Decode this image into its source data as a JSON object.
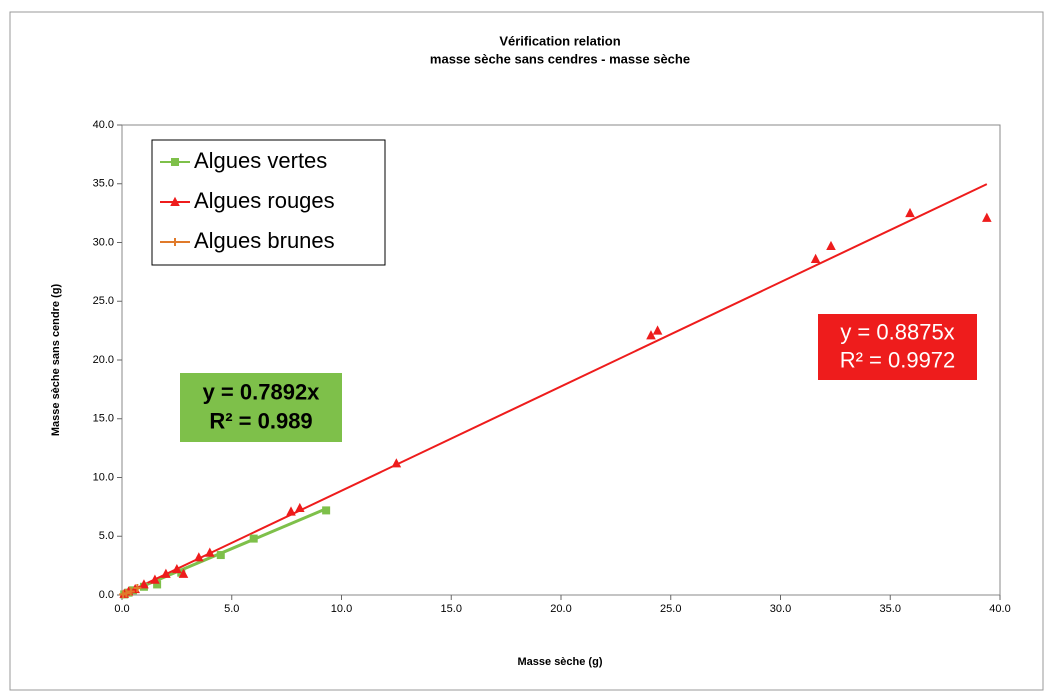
{
  "chart_data": {
    "type": "scatter",
    "title": "Vérification relation",
    "subtitle": "masse sèche sans cendres - masse sèche",
    "x_label": "Masse sèche (g)",
    "y_label": "Masse sèche sans cendre (g)",
    "xlim": [
      0,
      40
    ],
    "ylim": [
      0,
      40
    ],
    "xticks": [
      {
        "value": 0,
        "label": "0.0"
      },
      {
        "value": 5,
        "label": "5.0"
      },
      {
        "value": 10,
        "label": "10.0"
      },
      {
        "value": 15,
        "label": "15.0"
      },
      {
        "value": 20,
        "label": "20.0"
      },
      {
        "value": 25,
        "label": "25.0"
      },
      {
        "value": 30,
        "label": "30.0"
      },
      {
        "value": 35,
        "label": "35.0"
      },
      {
        "value": 40,
        "label": "40.0"
      }
    ],
    "yticks": [
      {
        "value": 0,
        "label": "0.0"
      },
      {
        "value": 5,
        "label": "5.0"
      },
      {
        "value": 10,
        "label": "10.0"
      },
      {
        "value": 15,
        "label": "15.0"
      },
      {
        "value": 20,
        "label": "20.0"
      },
      {
        "value": 25,
        "label": "25.0"
      },
      {
        "value": 30,
        "label": "30.0"
      },
      {
        "value": 35,
        "label": "35.0"
      },
      {
        "value": 40,
        "label": "40.0"
      }
    ],
    "legend": "top-left",
    "series": [
      {
        "name": "Algues vertes",
        "color": "#7ec04a",
        "marker": "square",
        "x": [
          0.1,
          0.3,
          0.5,
          1,
          1.6,
          2.7,
          4.5,
          6,
          9.3
        ],
        "values": [
          0.05,
          0.2,
          0.4,
          0.7,
          0.9,
          1.9,
          3.4,
          4.8,
          7.2
        ],
        "trendline": {
          "slope": 0.7892,
          "label": "y = 0.7892x",
          "r2": 0.989,
          "r2_label": "R² = 0.989"
        }
      },
      {
        "name": "Algues rouges",
        "color": "#ee1c1c",
        "marker": "triangle",
        "x": [
          0.1,
          0.3,
          0.6,
          1,
          1.5,
          2,
          2.5,
          2.8,
          3.5,
          4,
          7.7,
          8.1,
          12.5,
          24.1,
          24.4,
          31.6,
          32.3,
          35.9,
          39.4
        ],
        "values": [
          0.1,
          0.3,
          0.5,
          0.9,
          1.3,
          1.8,
          2.2,
          1.8,
          3.2,
          3.6,
          7.1,
          7.4,
          11.2,
          22.1,
          22.5,
          28.6,
          29.7,
          32.5,
          32.1
        ],
        "trendline": {
          "slope": 0.8875,
          "label": "y = 0.8875x",
          "r2": 0.9972,
          "r2_label": "R² = 0.9972"
        }
      },
      {
        "name": "Algues brunes",
        "color": "#e07a2a",
        "marker": "plus",
        "x": [
          0.05,
          0.2,
          0.4,
          0.7
        ],
        "values": [
          0.05,
          0.15,
          0.3,
          0.6
        ]
      }
    ]
  }
}
